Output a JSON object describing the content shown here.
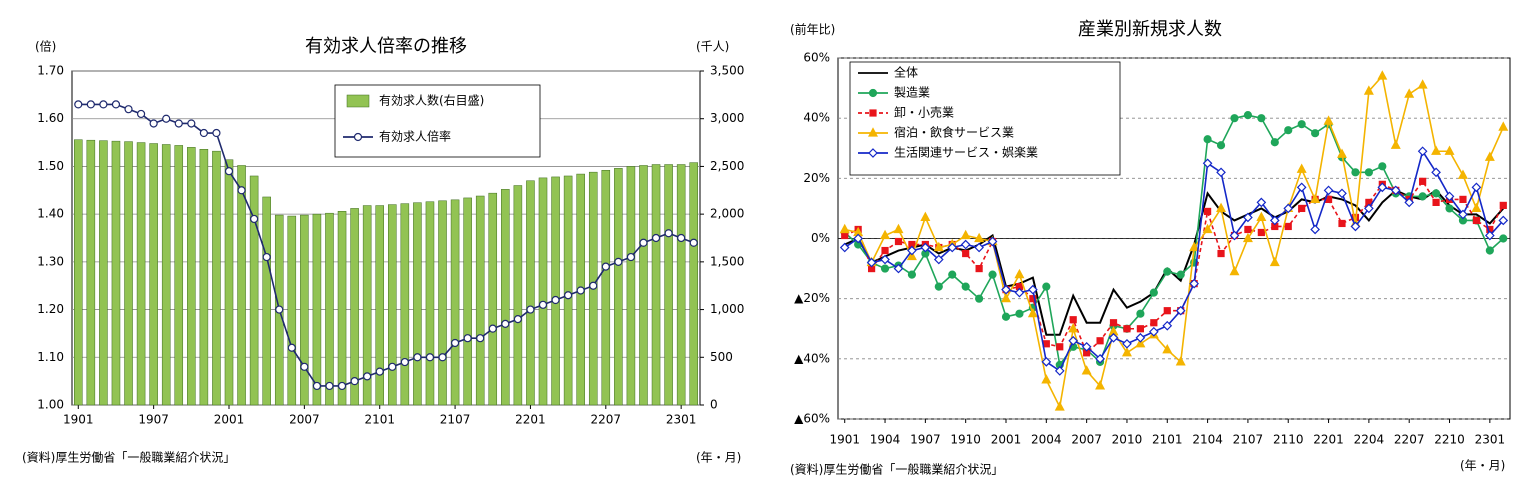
{
  "chart_data": [
    {
      "type": "bar",
      "title": "有効求人倍率の推移",
      "ylabel": "(倍)",
      "y2label": "(千人)",
      "source": "(資料)厚生労働省「一般職業紹介状況」",
      "xlabel": "(年・月)",
      "categories": [
        "1901",
        null,
        null,
        null,
        null,
        null,
        "1907",
        null,
        null,
        null,
        null,
        null,
        "2001",
        null,
        null,
        null,
        null,
        null,
        "2007",
        null,
        null,
        null,
        null,
        null,
        "2101",
        null,
        null,
        null,
        null,
        null,
        "2107",
        null,
        null,
        null,
        null,
        null,
        "2201",
        null,
        null,
        null,
        null,
        null,
        "2207",
        null,
        null,
        null,
        null,
        null,
        "2301",
        null
      ],
      "ylim": [
        1.0,
        1.7
      ],
      "yticks": [
        {
          "value": 1.0,
          "label": "1.00"
        },
        {
          "value": 1.1,
          "label": "1.10"
        },
        {
          "value": 1.2,
          "label": "1.20"
        },
        {
          "value": 1.3,
          "label": "1.30"
        },
        {
          "value": 1.4,
          "label": "1.40"
        },
        {
          "value": 1.5,
          "label": "1.50"
        },
        {
          "value": 1.6,
          "label": "1.60"
        },
        {
          "value": 1.7,
          "label": "1.70"
        }
      ],
      "y2lim": [
        0,
        3500
      ],
      "y2ticks": [
        0,
        500,
        {
          "value": 1000,
          "label": "1,000"
        },
        {
          "value": 1500,
          "label": "1,500"
        },
        {
          "value": 2000,
          "label": "2,000"
        },
        {
          "value": 2500,
          "label": "2,500"
        },
        {
          "value": 3000,
          "label": "3,000"
        },
        {
          "value": 3500,
          "label": "3,500"
        }
      ],
      "grid": true,
      "series": [
        {
          "name": "有効求人数(右目盛)",
          "type": "bar",
          "axis": "y2",
          "color": "#92c353",
          "values": [
            2780,
            2775,
            2770,
            2765,
            2760,
            2750,
            2740,
            2730,
            2720,
            2700,
            2680,
            2660,
            2570,
            2510,
            2400,
            2180,
            1990,
            1980,
            1990,
            2000,
            2010,
            2030,
            2060,
            2090,
            2090,
            2100,
            2110,
            2120,
            2130,
            2140,
            2150,
            2170,
            2190,
            2220,
            2260,
            2300,
            2350,
            2380,
            2390,
            2400,
            2420,
            2440,
            2460,
            2480,
            2500,
            2510,
            2520,
            2520,
            2520,
            2540
          ]
        },
        {
          "name": "有効求人倍率",
          "type": "line",
          "color": "#1f2a6e",
          "marker": "circle",
          "values": [
            1.63,
            1.63,
            1.63,
            1.63,
            1.62,
            1.61,
            1.59,
            1.6,
            1.59,
            1.59,
            1.57,
            1.57,
            1.49,
            1.45,
            1.39,
            1.31,
            1.2,
            1.12,
            1.08,
            1.04,
            1.04,
            1.04,
            1.05,
            1.06,
            1.07,
            1.08,
            1.09,
            1.1,
            1.1,
            1.1,
            1.13,
            1.14,
            1.14,
            1.16,
            1.17,
            1.18,
            1.2,
            1.21,
            1.22,
            1.23,
            1.24,
            1.25,
            1.29,
            1.3,
            1.31,
            1.34,
            1.35,
            1.36,
            1.35,
            1.34
          ]
        }
      ]
    },
    {
      "type": "line",
      "title": "産業別新規求人数",
      "ylabel": "(前年比)",
      "source": "(資料)厚生労働省「一般職業紹介状況」",
      "xlabel": "(年・月)",
      "categories": [
        "1901",
        null,
        null,
        "1904",
        null,
        null,
        "1907",
        null,
        null,
        "1910",
        null,
        null,
        "2001",
        null,
        null,
        "2004",
        null,
        null,
        "2007",
        null,
        null,
        "2010",
        null,
        null,
        "2101",
        null,
        null,
        "2104",
        null,
        null,
        "2107",
        null,
        null,
        "2110",
        null,
        null,
        "2201",
        null,
        null,
        "2204",
        null,
        null,
        "2207",
        null,
        null,
        "2210",
        null,
        null,
        "2301",
        null
      ],
      "ylim": [
        -60,
        60
      ],
      "yticks": [
        {
          "value": -60,
          "label": "▲60%"
        },
        {
          "value": -40,
          "label": "▲40%"
        },
        {
          "value": -20,
          "label": "▲20%"
        },
        {
          "value": 0,
          "label": "0%"
        },
        {
          "value": 20,
          "label": "20%"
        },
        {
          "value": 40,
          "label": "40%"
        },
        {
          "value": 60,
          "label": "60%"
        }
      ],
      "grid": true,
      "series": [
        {
          "name": "全体",
          "color": "#000000",
          "values": [
            -2,
            0,
            -8,
            -6,
            -4,
            -3,
            -2,
            -5,
            -3,
            -4,
            -2,
            1,
            -16,
            -15,
            -13,
            -32,
            -32,
            -19,
            -28,
            -28,
            -17,
            -23,
            -21,
            -18,
            -10,
            -14,
            -2,
            15,
            9,
            6,
            8,
            10,
            7,
            9,
            13,
            12,
            14,
            13,
            11,
            6,
            12,
            16,
            14,
            13,
            16,
            11,
            8,
            8,
            5,
            10
          ]
        },
        {
          "name": "製造業",
          "color": "#1fa65a",
          "marker": "circle",
          "values": [
            2,
            -2,
            -8,
            -10,
            -9,
            -12,
            -5,
            -16,
            -12,
            -16,
            -20,
            -12,
            -26,
            -25,
            -23,
            -16,
            -42,
            -36,
            -37,
            -41,
            -29,
            -30,
            -25,
            -18,
            -11,
            -12,
            -8,
            33,
            31,
            40,
            41,
            40,
            32,
            36,
            38,
            35,
            38,
            27,
            22,
            22,
            24,
            15,
            14,
            14,
            15,
            10,
            6,
            6,
            -4,
            0
          ]
        },
        {
          "name": "卸・小売業",
          "color": "#e8141b",
          "marker": "square",
          "linestyle": "dashed",
          "values": [
            1,
            3,
            -10,
            -4,
            -1,
            -2,
            -2,
            -3,
            -2,
            -5,
            -10,
            -1,
            -17,
            -16,
            -20,
            -35,
            -36,
            -27,
            -38,
            -34,
            -28,
            -30,
            -30,
            -28,
            -24,
            -24,
            -15,
            9,
            -5,
            1,
            3,
            2,
            4,
            4,
            10,
            13,
            13,
            5,
            7,
            12,
            18,
            16,
            13,
            19,
            12,
            13,
            13,
            6,
            3,
            11
          ]
        },
        {
          "name": "宿泊・飲食サービス業",
          "color": "#f4b400",
          "marker": "triangle",
          "values": [
            3,
            2,
            -8,
            1,
            3,
            -6,
            7,
            -3,
            -2,
            1,
            0,
            -1,
            -20,
            -12,
            -25,
            -47,
            -56,
            -30,
            -44,
            -49,
            -31,
            -38,
            -35,
            -32,
            -37,
            -41,
            -3,
            3,
            10,
            -11,
            0,
            7,
            -8,
            10,
            23,
            13,
            39,
            28,
            5,
            49,
            54,
            31,
            48,
            51,
            29,
            29,
            21,
            10,
            27,
            37
          ]
        },
        {
          "name": "生活関連サービス・娯楽業",
          "color": "#1428c8",
          "marker": "diamond",
          "values": [
            -3,
            0,
            -8,
            -7,
            -10,
            -4,
            -3,
            -7,
            -3,
            -2,
            -3,
            -1,
            -17,
            -18,
            -17,
            -41,
            -44,
            -34,
            -36,
            -40,
            -33,
            -35,
            -33,
            -31,
            -29,
            -24,
            -15,
            25,
            22,
            1,
            7,
            12,
            6,
            10,
            17,
            3,
            16,
            15,
            4,
            10,
            17,
            16,
            12,
            29,
            22,
            14,
            8,
            17,
            1,
            6
          ]
        }
      ]
    }
  ]
}
